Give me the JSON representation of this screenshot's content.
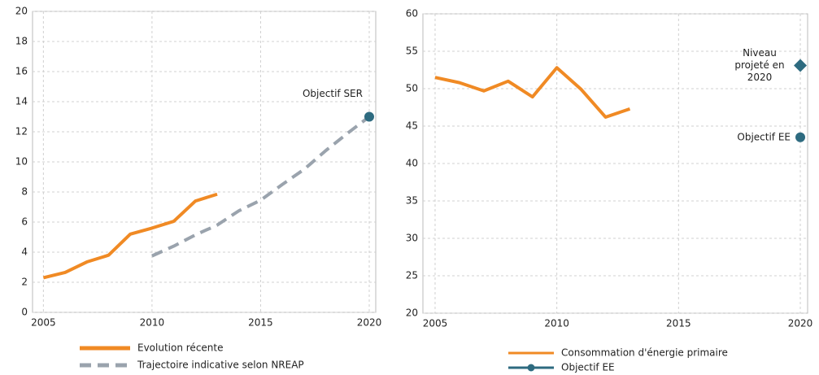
{
  "chart_data": [
    {
      "type": "line",
      "xlim": [
        2004.5,
        2020.3
      ],
      "xticks": [
        2005,
        2010,
        2015,
        2020
      ],
      "ylim": [
        0,
        20
      ],
      "yticks": [
        0,
        2,
        4,
        6,
        8,
        10,
        12,
        14,
        16,
        18,
        20
      ],
      "grid": true,
      "series": [
        {
          "name": "Evolution récente",
          "color": "#f08a24",
          "style": "solid",
          "x": [
            2005,
            2006,
            2007,
            2008,
            2009,
            2010,
            2011,
            2012,
            2013
          ],
          "values": [
            2.3,
            2.65,
            3.35,
            3.8,
            5.2,
            5.6,
            6.05,
            7.4,
            7.85
          ]
        },
        {
          "name": "Trajectoire indicative  selon NREAP",
          "color": "#9aa3ad",
          "style": "dashed",
          "x": [
            2010,
            2011,
            2012,
            2013,
            2014,
            2015,
            2016,
            2017,
            2018,
            2019,
            2020
          ],
          "values": [
            3.75,
            4.4,
            5.15,
            5.8,
            6.75,
            7.45,
            8.5,
            9.5,
            10.75,
            11.9,
            13.0
          ]
        }
      ],
      "markers": [
        {
          "label": [
            "Objectif SER"
          ],
          "x": 2020,
          "value": 13.0,
          "shape": "circle",
          "color": "#2e6b80"
        }
      ]
    },
    {
      "type": "line",
      "xlim": [
        2004.5,
        2020.3
      ],
      "xticks": [
        2005,
        2010,
        2015,
        2020
      ],
      "ylim": [
        20,
        60
      ],
      "yticks": [
        20,
        25,
        30,
        35,
        40,
        45,
        50,
        55,
        60
      ],
      "grid": true,
      "series": [
        {
          "name": "Consommation d'énergie primaire",
          "color": "#f08a24",
          "style": "solid",
          "x": [
            2005,
            2006,
            2007,
            2008,
            2009,
            2010,
            2011,
            2012,
            2013
          ],
          "values": [
            51.5,
            50.8,
            49.7,
            51.0,
            48.9,
            52.8,
            49.9,
            46.2,
            47.3
          ]
        },
        {
          "name": "Objectif EE",
          "color": "#2e6b80",
          "style": "point",
          "label": "Objectif EE",
          "x": [
            2020
          ],
          "values": [
            43.5
          ]
        }
      ],
      "markers": [
        {
          "label": [
            "Niveau",
            "projeté en",
            "2020"
          ],
          "x": 2020,
          "value": 53.1,
          "shape": "diamond",
          "color": "#2e6b80"
        }
      ]
    }
  ]
}
